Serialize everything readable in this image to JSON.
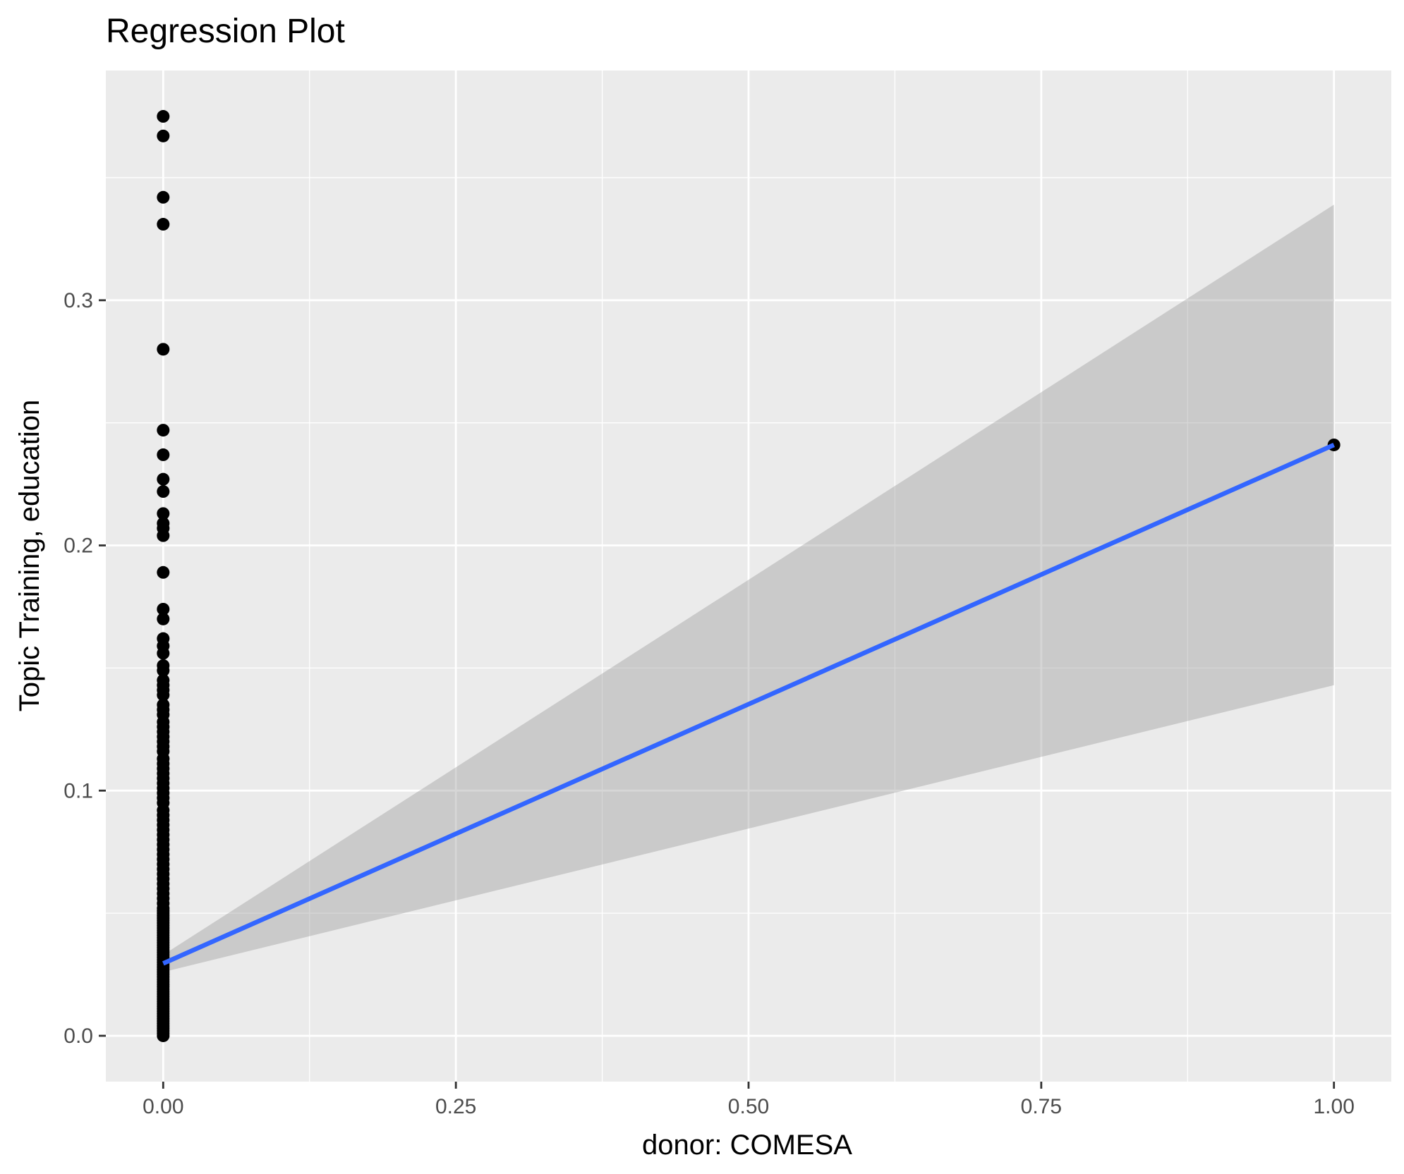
{
  "chart_data": {
    "type": "scatter",
    "title": "Regression Plot",
    "xlabel": "donor: COMESA",
    "ylabel": "Topic Training, education",
    "xlim": [
      -0.049,
      1.049
    ],
    "ylim": [
      -0.0187,
      0.3937
    ],
    "x_ticks": [
      {
        "value": 0,
        "label": "0.00"
      },
      {
        "value": 0.25,
        "label": "0.25"
      },
      {
        "value": 0.5,
        "label": "0.50"
      },
      {
        "value": 0.75,
        "label": "0.75"
      },
      {
        "value": 1,
        "label": "1.00"
      }
    ],
    "y_ticks": [
      {
        "value": 0,
        "label": "0.0"
      },
      {
        "value": 0.1,
        "label": "0.1"
      },
      {
        "value": 0.2,
        "label": "0.2"
      },
      {
        "value": 0.3,
        "label": "0.3"
      }
    ],
    "grid": true,
    "colors": {
      "panel": "#ebebeb",
      "grid": "#ffffff",
      "points": "#000000",
      "fit_line": "#3366ff",
      "confidence_band": "#999999"
    },
    "points": {
      "x": [
        0,
        0,
        0,
        0,
        0,
        0,
        0,
        0,
        0,
        0,
        0,
        0,
        0,
        0,
        0,
        0,
        0,
        0,
        0,
        0,
        0,
        0,
        0,
        0,
        0,
        0,
        0,
        0,
        0,
        0,
        0,
        0,
        0,
        0,
        0,
        0,
        0,
        0,
        0,
        0,
        0,
        0,
        0,
        0,
        0,
        0,
        0,
        0,
        0,
        0,
        0,
        0,
        0,
        0,
        0,
        0,
        0,
        0,
        0,
        0,
        0,
        0,
        0,
        0,
        0,
        0,
        0,
        0,
        0,
        0,
        0,
        0,
        0,
        0,
        0,
        0,
        0,
        0,
        0,
        0,
        0,
        0,
        0,
        0,
        0,
        0,
        0,
        0,
        0,
        0,
        0,
        0,
        0,
        0,
        0,
        0,
        0,
        0,
        0,
        0,
        0,
        0,
        0,
        0,
        0,
        0,
        0,
        0,
        0,
        0,
        0,
        0,
        0,
        0,
        0,
        0,
        0,
        0,
        1
      ],
      "y": [
        0.375,
        0.367,
        0.342,
        0.331,
        0.28,
        0.247,
        0.237,
        0.227,
        0.222,
        0.213,
        0.209,
        0.207,
        0.204,
        0.189,
        0.174,
        0.17,
        0.162,
        0.159,
        0.156,
        0.151,
        0.149,
        0.145,
        0.143,
        0.141,
        0.139,
        0.135,
        0.133,
        0.131,
        0.128,
        0.126,
        0.124,
        0.122,
        0.12,
        0.118,
        0.116,
        0.113,
        0.111,
        0.109,
        0.107,
        0.105,
        0.103,
        0.101,
        0.099,
        0.097,
        0.095,
        0.092,
        0.09,
        0.088,
        0.086,
        0.084,
        0.082,
        0.08,
        0.078,
        0.076,
        0.074,
        0.072,
        0.07,
        0.068,
        0.066,
        0.064,
        0.062,
        0.06,
        0.058,
        0.056,
        0.054,
        0.052,
        0.05,
        0.048,
        0.046,
        0.044,
        0.042,
        0.04,
        0.038,
        0.036,
        0.034,
        0.032,
        0.03,
        0.028,
        0.026,
        0.024,
        0.022,
        0.02,
        0.018,
        0.016,
        0.014,
        0.012,
        0.01,
        0.008,
        0.006,
        0.004,
        0.002,
        0.0,
        0.001,
        0.003,
        0.005,
        0.007,
        0.009,
        0.011,
        0.013,
        0.015,
        0.017,
        0.019,
        0.021,
        0.023,
        0.025,
        0.027,
        0.029,
        0.031,
        0.033,
        0.035,
        0.037,
        0.039,
        0.041,
        0.043,
        0.045,
        0.047,
        0.049,
        0.051,
        0.241
      ]
    },
    "fit_line": {
      "x": [
        0,
        1
      ],
      "y": [
        0.0295,
        0.241
      ]
    },
    "confidence_band": {
      "x": [
        0,
        1
      ],
      "lower": [
        0.026,
        0.143
      ],
      "upper": [
        0.033,
        0.339
      ]
    }
  }
}
